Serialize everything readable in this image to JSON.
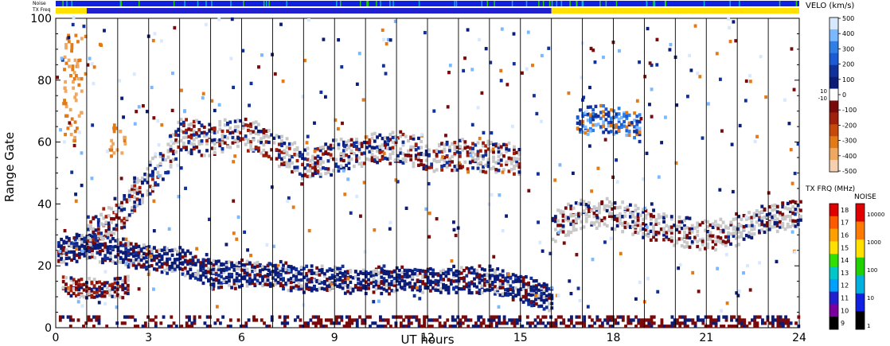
{
  "chart_data": {
    "type": "heatmap",
    "title": "",
    "xlabel": "UT hours",
    "ylabel": "Range Gate",
    "xlim": [
      0,
      24
    ],
    "ylim": [
      0,
      100
    ],
    "x_ticks": [
      "0",
      "3",
      "6",
      "9",
      "12",
      "15",
      "18",
      "21",
      "24"
    ],
    "y_ticks": [
      "0",
      "20",
      "40",
      "60",
      "80",
      "100"
    ],
    "top_strips": {
      "noise_label": "Noise",
      "txfreq_label": "TX Freq",
      "txfreq_switch_hour": 16
    },
    "scan_boundaries_hours": [
      1,
      2,
      3,
      4,
      5,
      6,
      7,
      8,
      9,
      10,
      11,
      12,
      13,
      14,
      15,
      16,
      17,
      18,
      19,
      20,
      21,
      22,
      23
    ],
    "velocity_scale": {
      "title": "VELO (km/s)",
      "tick_labels": [
        "500",
        "400",
        "300",
        "200",
        "100",
        "0",
        "-100",
        "-200",
        "-300",
        "-400",
        "-500"
      ],
      "small_labels": [
        "10",
        "-10"
      ],
      "colors": [
        "#d8e8ff",
        "#7ab8ff",
        "#2f7fe6",
        "#1b5cd6",
        "#10309c",
        "#0a1c78",
        "#ffffff",
        "#7a0a0a",
        "#a0200c",
        "#c84a0a",
        "#e27a18",
        "#f0a860",
        "#f6d0b0"
      ]
    },
    "tx_frequency_scale": {
      "title": "TX FRQ (MHz)",
      "labels": [
        "18",
        "17",
        "16",
        "15",
        "14",
        "13",
        "12",
        "11",
        "10",
        "9"
      ],
      "colors": [
        "#e00000",
        "#ff5a00",
        "#ffa000",
        "#ffe000",
        "#30e000",
        "#00c8c8",
        "#00a0ff",
        "#2020d0",
        "#7a00a0",
        "#000000"
      ]
    },
    "noise_scale": {
      "title": "NOISE",
      "labels": [
        "10000",
        "1000",
        "100",
        "10",
        "1"
      ],
      "colors": [
        "#e00000",
        "#ff7a00",
        "#ffe000",
        "#20d000",
        "#00b0e0",
        "#1020e0",
        "#000000"
      ]
    },
    "ground_scatter_color": "#c8c8c8",
    "echo_bands": [
      {
        "name": "",
        "points": [
          [
            0.05,
            24
          ],
          [
            1,
            26
          ],
          [
            2,
            24
          ],
          [
            3,
            22
          ],
          [
            4,
            21
          ],
          [
            5,
            17
          ],
          [
            6,
            17
          ],
          [
            7,
            17
          ],
          [
            8,
            15
          ],
          [
            9,
            15
          ],
          [
            10,
            15
          ],
          [
            11,
            15
          ],
          [
            12,
            15
          ],
          [
            13,
            15
          ],
          [
            14,
            15
          ],
          [
            15,
            12
          ],
          [
            16,
            9
          ]
        ]
      },
      {
        "name": "",
        "points": [
          [
            0.2,
            13
          ],
          [
            1,
            12
          ],
          [
            1.8,
            12
          ],
          [
            2.3,
            13
          ]
        ]
      },
      {
        "name": "",
        "points": [
          [
            1,
            30
          ],
          [
            2,
            35
          ],
          [
            3,
            48
          ],
          [
            3.6,
            55
          ],
          [
            4,
            62
          ],
          [
            5,
            60
          ],
          [
            6,
            63
          ],
          [
            7,
            58
          ],
          [
            8,
            52
          ],
          [
            9,
            55
          ],
          [
            10,
            57
          ],
          [
            11,
            58
          ],
          [
            12,
            55
          ],
          [
            13,
            55
          ],
          [
            14,
            55
          ],
          [
            15,
            53
          ]
        ]
      },
      {
        "name": "",
        "points": [
          [
            16,
            32
          ],
          [
            17,
            37
          ],
          [
            18,
            36
          ],
          [
            19,
            33
          ],
          [
            20,
            31
          ],
          [
            21,
            29
          ],
          [
            22,
            31
          ],
          [
            23,
            35
          ],
          [
            24,
            37
          ]
        ]
      },
      {
        "name": "",
        "points": [
          [
            16.8,
            66
          ],
          [
            17.5,
            67
          ],
          [
            18.2,
            66
          ],
          [
            18.8,
            64
          ]
        ]
      }
    ]
  }
}
